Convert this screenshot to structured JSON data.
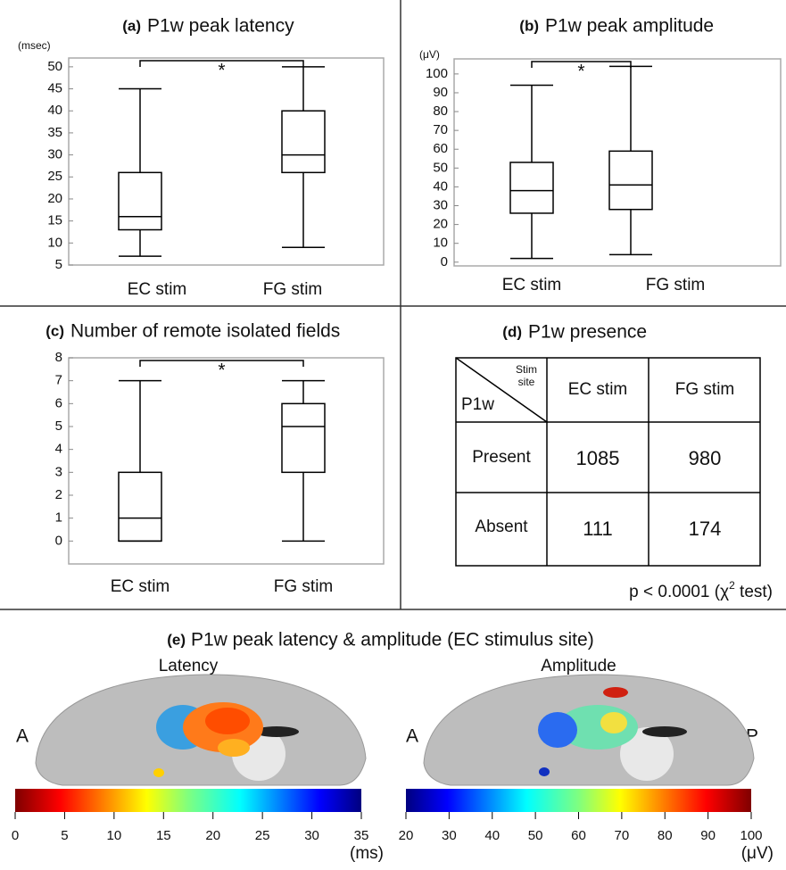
{
  "chart_data": [
    {
      "type": "box",
      "label": "(a)",
      "title": "P1w peak latency",
      "y_label": "(msec)",
      "categories": [
        "EC stim",
        "FG stim"
      ],
      "boxes": [
        {
          "min": 7,
          "q1": 13,
          "median": 16,
          "q3": 26,
          "max": 45
        },
        {
          "min": 9,
          "q1": 26,
          "median": 30,
          "q3": 40,
          "max": 50
        }
      ],
      "annotation": "*",
      "ylim": [
        5,
        52
      ],
      "yticks": [
        5,
        10,
        15,
        20,
        25,
        30,
        35,
        40,
        45,
        50
      ],
      "color": "#000000"
    },
    {
      "type": "box",
      "label": "(b)",
      "title": "P1w peak amplitude",
      "y_label": "(μV)",
      "categories": [
        "EC stim",
        "FG stim"
      ],
      "boxes": [
        {
          "min": 2,
          "q1": 26,
          "median": 38,
          "q3": 53,
          "max": 94
        },
        {
          "min": 4,
          "q1": 28,
          "median": 41,
          "q3": 59,
          "max": 104
        }
      ],
      "annotation": "*",
      "ylim": [
        -2,
        108
      ],
      "yticks": [
        0,
        10,
        20,
        30,
        40,
        50,
        60,
        70,
        80,
        90,
        100
      ],
      "color": "#000000"
    },
    {
      "type": "box",
      "label": "(c)",
      "title": "Number of remote isolated fields",
      "categories": [
        "EC stim",
        "FG stim"
      ],
      "boxes": [
        {
          "min": 0,
          "q1": 0,
          "median": 1,
          "q3": 3,
          "max": 7
        },
        {
          "min": 0,
          "q1": 3,
          "median": 5,
          "q3": 6,
          "max": 7
        }
      ],
      "annotation": "*",
      "ylim": [
        -1,
        8
      ],
      "yticks": [
        0,
        1,
        2,
        3,
        4,
        5,
        6,
        7,
        8
      ],
      "color": "#000000"
    },
    {
      "type": "colorbar",
      "title": "Latency",
      "unit": "(ms)",
      "reversed": true,
      "xlim": [
        0,
        35
      ],
      "xticks": [
        0,
        5,
        10,
        15,
        20,
        25,
        30,
        35
      ]
    },
    {
      "type": "colorbar",
      "title": "Amplitude",
      "unit": "(μV)",
      "reversed": false,
      "xlim": [
        20,
        100
      ],
      "xticks": [
        20,
        30,
        40,
        50,
        60,
        70,
        80,
        90,
        100
      ]
    }
  ],
  "table": {
    "label": "(d)",
    "title": "P1w presence",
    "corner_top": [
      "Stim",
      "site"
    ],
    "corner_bottom": "P1w",
    "columns": [
      "EC stim",
      "FG stim"
    ],
    "rows": [
      [
        "Present",
        "1085",
        "980"
      ],
      [
        "Absent",
        "111",
        "174"
      ]
    ],
    "note": {
      "prefix": "p < 0.0001 (χ",
      "sup": "2",
      "suffix": " test)"
    }
  },
  "brain_maps": {
    "label": "(e)",
    "title": "P1w peak latency & amplitude (EC stimulus site)",
    "latency_orientation": "A",
    "amplitude_orientation": [
      "A",
      "P"
    ]
  }
}
